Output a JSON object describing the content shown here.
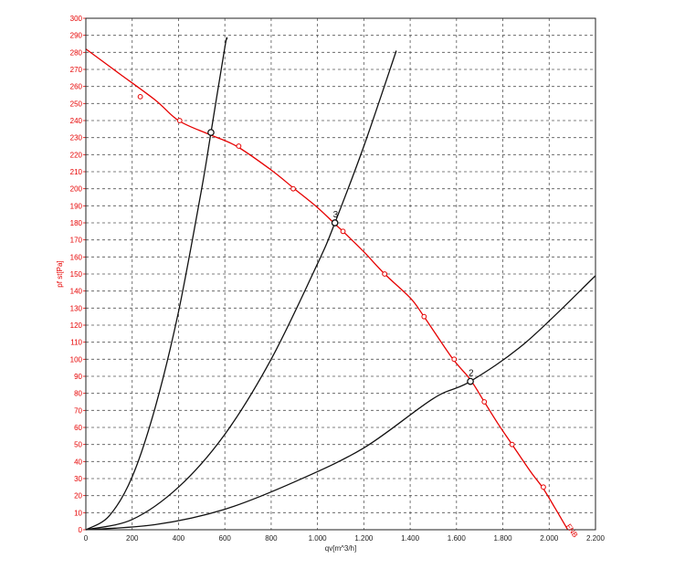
{
  "chart_data": {
    "type": "line",
    "title": "",
    "xlabel": "qv[m^3/h]",
    "ylabel": "pf st[Pa]",
    "xlim": [
      0,
      2200
    ],
    "ylim": [
      0,
      300
    ],
    "x_ticks": [
      0,
      200,
      400,
      600,
      800,
      1000,
      1200,
      1400,
      1600,
      1800,
      2000,
      2200
    ],
    "x_tick_labels": [
      "0",
      "200",
      "400",
      "600",
      "800",
      "1.000",
      "1.200",
      "1.400",
      "1.600",
      "1.800",
      "2.000",
      "2.200"
    ],
    "y_ticks": [
      0,
      10,
      20,
      30,
      40,
      50,
      60,
      70,
      80,
      90,
      100,
      110,
      120,
      130,
      140,
      150,
      160,
      170,
      180,
      190,
      200,
      210,
      220,
      230,
      240,
      250,
      260,
      270,
      280,
      290,
      300
    ],
    "grid": true,
    "fan_curve": {
      "color": "#e60000",
      "label": "FNB",
      "x": [
        0,
        150,
        300,
        400,
        530,
        650,
        800,
        900,
        1000,
        1070,
        1110,
        1200,
        1290,
        1400,
        1460,
        1580,
        1660,
        1720,
        1780,
        1840,
        1920,
        1970,
        2020,
        2080
      ],
      "y": [
        282,
        267,
        252,
        240,
        232,
        225,
        211,
        200,
        189,
        180,
        175,
        163,
        150,
        136,
        125,
        101,
        88,
        75,
        62,
        50,
        34,
        25,
        14,
        0
      ],
      "marker_x": [
        235,
        405,
        660,
        895,
        1110,
        1290,
        1460,
        1590,
        1720,
        1840,
        1975
      ],
      "marker_y": [
        254,
        240,
        225,
        200,
        175,
        150,
        125,
        100,
        75,
        50,
        25
      ]
    },
    "system_curves": [
      {
        "color": "#111111",
        "x": [
          0,
          100,
          200,
          300,
          400,
          500,
          540,
          600,
          610
        ],
        "y": [
          0,
          8,
          31,
          72,
          128,
          200,
          233,
          283,
          288
        ]
      },
      {
        "color": "#111111",
        "x": [
          0,
          200,
          400,
          600,
          800,
          1000,
          1075,
          1200,
          1340
        ],
        "y": [
          0,
          6,
          25,
          56,
          100,
          156,
          180,
          225,
          281
        ]
      },
      {
        "color": "#111111",
        "x": [
          0,
          300,
          600,
          900,
          1200,
          1500,
          1660,
          1900,
          2200
        ],
        "y": [
          0,
          3,
          12,
          28,
          48,
          77,
          87,
          110,
          149
        ]
      }
    ],
    "operating_points": [
      {
        "label": "",
        "x": 540,
        "y": 233
      },
      {
        "label": "3",
        "x": 1075,
        "y": 180
      },
      {
        "label": "2",
        "x": 1660,
        "y": 87
      }
    ]
  }
}
